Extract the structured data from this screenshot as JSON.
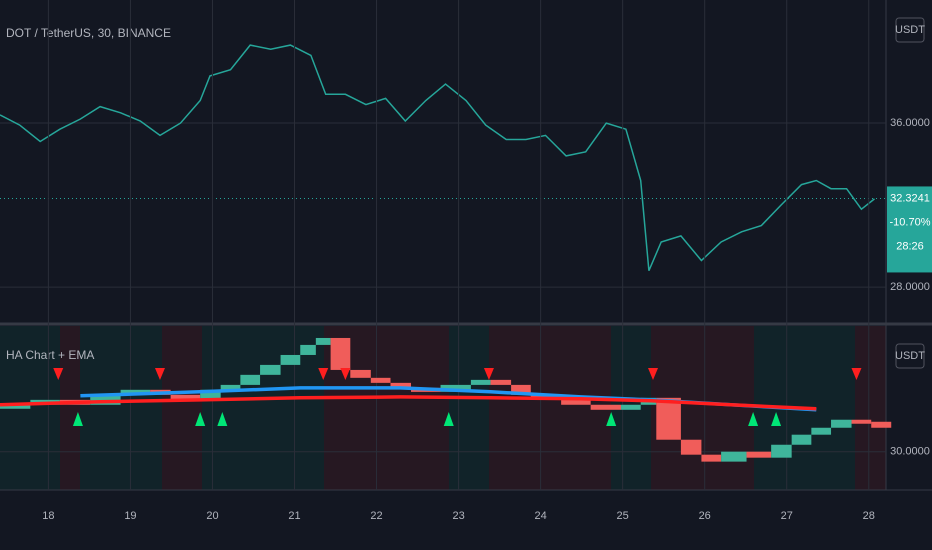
{
  "header": {
    "symbol": "DOT / TetherUS, 30, BINANCE",
    "currency": "USDT"
  },
  "chart_data": [
    {
      "type": "line",
      "color": "#26a69a",
      "x": [
        17.41,
        17.65,
        17.9,
        18.14,
        18.39,
        18.63,
        18.88,
        19.12,
        19.36,
        19.61,
        19.85,
        19.97,
        20.22,
        20.46,
        20.71,
        20.95,
        21.2,
        21.38,
        21.62,
        21.87,
        22.11,
        22.35,
        22.6,
        22.84,
        23.09,
        23.33,
        23.58,
        23.82,
        24.06,
        24.31,
        24.55,
        24.8,
        25.04,
        25.22,
        25.32,
        25.47,
        25.71,
        25.96,
        26.2,
        26.45,
        26.69,
        26.93,
        27.18,
        27.36,
        27.54,
        27.73,
        27.91,
        28.07
      ],
      "values": [
        36.4,
        35.9,
        35.1,
        35.7,
        36.2,
        36.8,
        36.5,
        36.1,
        35.4,
        36.0,
        37.1,
        38.3,
        38.6,
        39.8,
        39.6,
        39.8,
        39.3,
        37.4,
        37.4,
        36.9,
        37.2,
        36.1,
        37.1,
        37.9,
        37.1,
        35.9,
        35.2,
        35.2,
        35.4,
        34.4,
        34.6,
        36.0,
        35.7,
        33.2,
        28.8,
        30.2,
        30.5,
        29.3,
        30.2,
        30.7,
        31.0,
        32.0,
        33.0,
        33.2,
        32.8,
        32.8,
        31.8,
        32.3
      ],
      "xlim": [
        17.41,
        28.21
      ],
      "ylim": [
        26.3,
        42.0
      ],
      "yticks": [
        {
          "value": 28,
          "label": "28.0000"
        },
        {
          "value": 36,
          "label": "36.0000"
        }
      ],
      "last_price": 32.3241,
      "change": {
        "value": -10.7,
        "label": "-10.70%"
      },
      "countdown": "28:26"
    },
    {
      "type": "heikin-ashi",
      "title": "HA Chart + EMA",
      "up_color": "#3fb59b",
      "down_color": "#f05d5a",
      "x": [
        17.41,
        17.78,
        18.14,
        18.51,
        18.88,
        19.24,
        19.49,
        19.85,
        20.1,
        20.34,
        20.58,
        20.83,
        21.07,
        21.26,
        21.44,
        21.68,
        21.93,
        22.17,
        22.42,
        22.78,
        23.15,
        23.39,
        23.64,
        23.88,
        24.25,
        24.61,
        24.98,
        25.22,
        25.41,
        25.71,
        25.96,
        26.2,
        26.51,
        26.81,
        27.06,
        27.3,
        27.54,
        27.79,
        28.03
      ],
      "values": [
        33.92,
        34.33,
        33.92,
        34.75,
        35.17,
        34.75,
        34.33,
        35.17,
        35.58,
        36.42,
        37.25,
        38.08,
        38.92,
        39.5,
        36.83,
        36.17,
        35.75,
        35.33,
        35.0,
        35.58,
        36.0,
        35.58,
        34.75,
        34.33,
        33.92,
        33.5,
        33.92,
        34.5,
        31.0,
        29.75,
        29.17,
        30.0,
        29.5,
        30.58,
        31.42,
        32.0,
        32.67,
        32.5,
        32.0
      ],
      "series": [
        {
          "color": "#2196f3",
          "x": [
            18.39,
            19.85,
            21.07,
            22.29,
            23.39,
            24.49,
            25.35,
            26.32,
            27.36
          ],
          "values": [
            34.67,
            35.0,
            35.33,
            35.33,
            35.0,
            34.58,
            34.33,
            33.92,
            33.5
          ]
        },
        {
          "color": "#ff1f1f",
          "x": [
            17.41,
            18.63,
            19.85,
            21.07,
            22.29,
            23.39,
            24.49,
            25.35,
            26.32,
            27.36
          ],
          "values": [
            33.92,
            34.17,
            34.33,
            34.5,
            34.58,
            34.5,
            34.42,
            34.25,
            33.92,
            33.58
          ]
        }
      ],
      "sell_signals": [
        18.12,
        19.36,
        21.35,
        21.62,
        23.37,
        25.37,
        27.85
      ],
      "buy_signals": [
        18.36,
        19.85,
        20.12,
        22.88,
        24.86,
        26.59,
        26.87
      ],
      "xlim": [
        17.41,
        28.21
      ],
      "ylim": [
        26.8,
        40.5
      ],
      "yticks": [
        {
          "value": 30,
          "label": "30.0000"
        }
      ],
      "xticks": [
        18,
        19,
        20,
        21,
        22,
        23,
        24,
        25,
        26,
        27,
        28
      ]
    }
  ]
}
